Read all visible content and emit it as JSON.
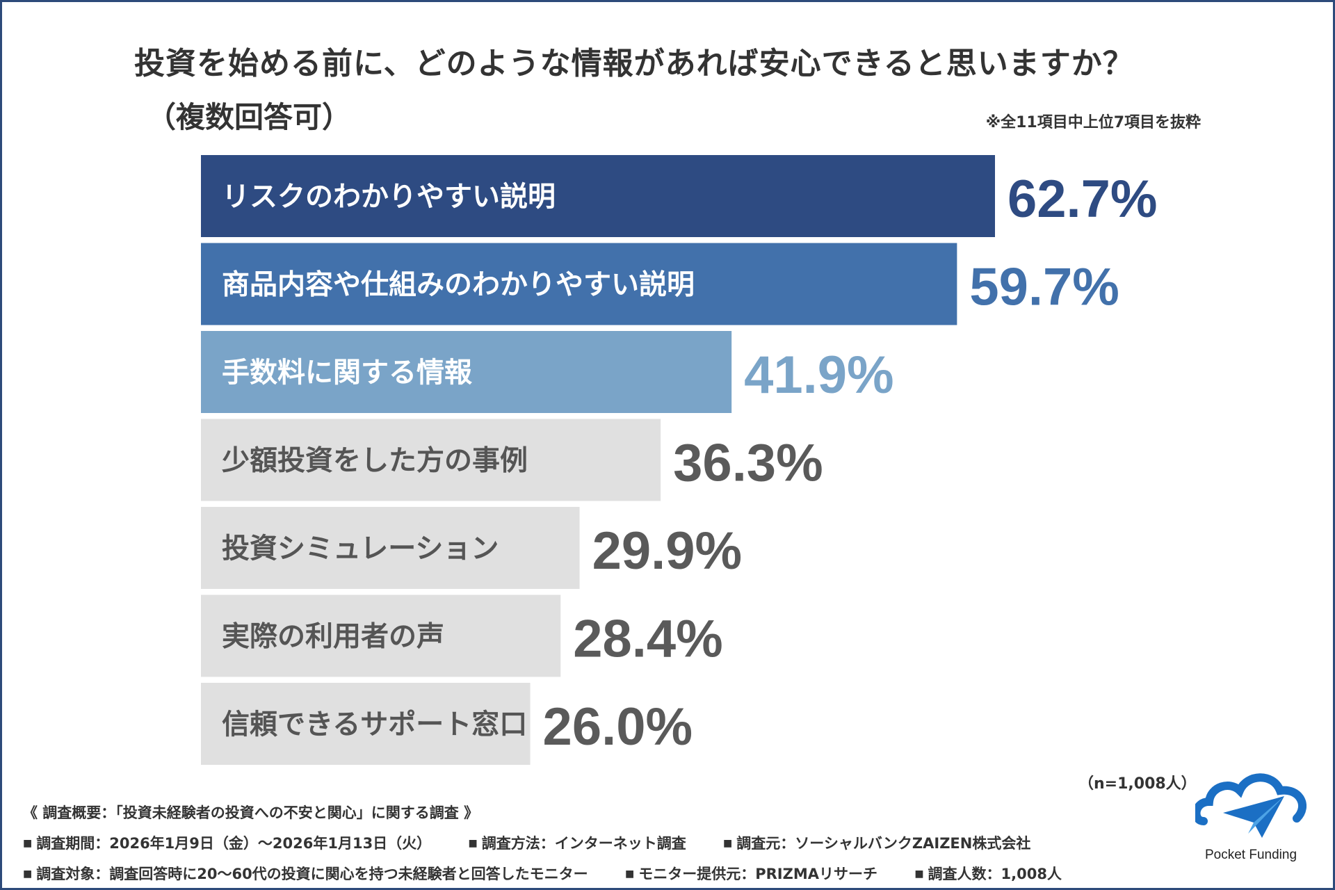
{
  "title": "投資を始める前に、どのような情報があれば安心できると思いますか？",
  "subtitle": "（複数回答可）",
  "note": "※全11項目中上位7項目を抜粋",
  "chart_data": {
    "type": "bar",
    "orientation": "horizontal",
    "categories": [
      "リスクのわかりやすい説明",
      "商品内容や仕組みのわかりやすい説明",
      "手数料に関する情報",
      "少額投資をした方の事例",
      "投資シミュレーション",
      "実際の利用者の声",
      "信頼できるサポート窓口"
    ],
    "values": [
      62.7,
      59.7,
      41.9,
      36.3,
      29.9,
      28.4,
      26.0
    ],
    "value_labels": [
      "62.7%",
      "59.7%",
      "41.9%",
      "36.3%",
      "29.9%",
      "28.4%",
      "26.0%"
    ],
    "bar_colors": [
      "#2e4b82",
      "#4271ab",
      "#7aa4c8",
      "#e0e0e0",
      "#e0e0e0",
      "#e0e0e0",
      "#e0e0e0"
    ],
    "category_text_colors": [
      "#ffffff",
      "#ffffff",
      "#ffffff",
      "#555555",
      "#555555",
      "#555555",
      "#555555"
    ],
    "value_text_colors": [
      "#2e4b82",
      "#4271ab",
      "#7aa4c8",
      "#5a5a5a",
      "#5a5a5a",
      "#5a5a5a",
      "#5a5a5a"
    ],
    "unit": "%"
  },
  "sample_size": "（n=1,008人）",
  "footer": {
    "summary": "《 調査概要：「投資未経験者の投資への不安と関心」に関する調査 》",
    "line2": [
      "調査期間：2026年1月9日（金）～2026年1月13日（火）",
      "調査方法：インターネット調査",
      "調査元：ソーシャルバンクZAIZEN株式会社"
    ],
    "line3": [
      "調査対象：調査回答時に20～60代の投資に関心を持つ未経験者と回答したモニター",
      "モニター提供元：PRIZMAリサーチ",
      "調査人数：1,008人"
    ]
  },
  "logo": {
    "text": "Pocket Funding",
    "icon": "cloud-paper-plane-icon",
    "colors": [
      "#1b6fc4",
      "#4da3e6"
    ]
  },
  "colors": {
    "frame": "#2d4a7a",
    "text": "#333333"
  }
}
